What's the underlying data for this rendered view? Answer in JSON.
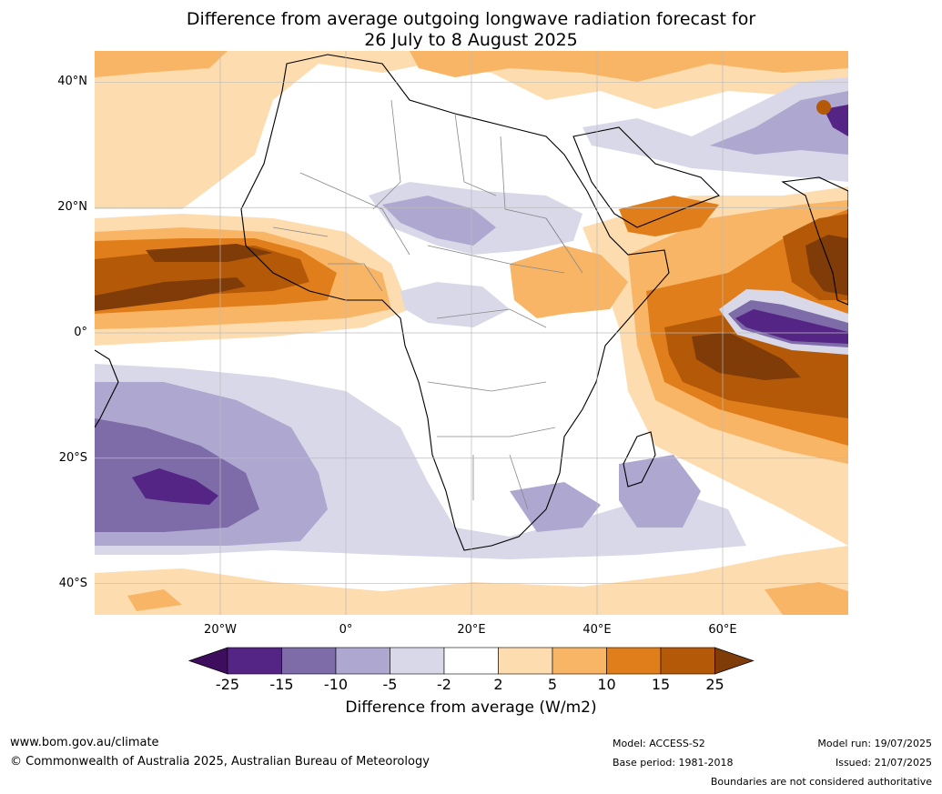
{
  "title": {
    "line1": "Difference from average outgoing longwave radiation forecast for",
    "line2": "26 July to 8 August 2025"
  },
  "map": {
    "lon_range": [
      -40,
      80
    ],
    "lat_range": [
      -45,
      45
    ],
    "lat_ticks": [
      {
        "value": 40,
        "label": "40°N"
      },
      {
        "value": 20,
        "label": "20°N"
      },
      {
        "value": 0,
        "label": "0°"
      },
      {
        "value": -20,
        "label": "20°S"
      },
      {
        "value": -40,
        "label": "40°S"
      }
    ],
    "lon_ticks": [
      {
        "value": -20,
        "label": "20°W"
      },
      {
        "value": 0,
        "label": "0°"
      },
      {
        "value": 20,
        "label": "20°E"
      },
      {
        "value": 40,
        "label": "40°E"
      },
      {
        "value": 60,
        "label": "60°E"
      }
    ]
  },
  "legend": {
    "label": "Difference from average (W/m2)",
    "ticks": [
      "-25",
      "-15",
      "-10",
      "-5",
      "-2",
      "2",
      "5",
      "10",
      "15",
      "25"
    ],
    "colors": [
      "#3f0d5e",
      "#552585",
      "#7d6ca8",
      "#aea7cf",
      "#d8d8e9",
      "#ffffff",
      "#fddcb0",
      "#f9b566",
      "#e07e1b",
      "#b35908",
      "#7f3b08"
    ]
  },
  "footer": {
    "website": "www.bom.gov.au/climate",
    "copyright": "© Commonwealth of Australia 2025, Australian Bureau of Meteorology",
    "model": "Model: ACCESS-S2",
    "base_period": "Base period: 1981-2018",
    "model_run": "Model run: 19/07/2025",
    "issued": "Issued: 21/07/2025",
    "disclaimer": "Boundaries are not considered authoritative"
  }
}
